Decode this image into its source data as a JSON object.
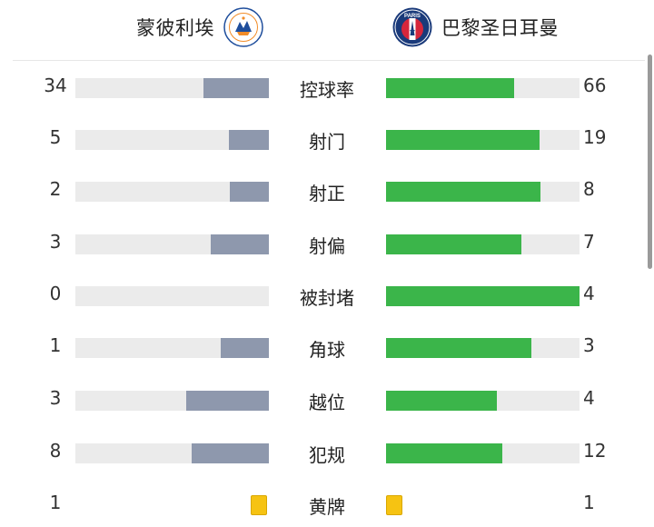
{
  "header": {
    "home_team": "蒙彼利埃",
    "away_team": "巴黎圣日耳曼",
    "home_logo_icon": "montpellier-crest",
    "away_logo_icon": "psg-crest",
    "away_logo_text": "PARIS",
    "home_logo_text": "MONTPELLIER HERAULT SPORT CLUB",
    "home_logo_year": "1974"
  },
  "colors": {
    "home_bar": "#8e98ad",
    "away_bar": "#3bb54a",
    "track": "#ebebeb",
    "yellow_card": "#f6c312"
  },
  "stats": [
    {
      "label": "控球率",
      "home": "34",
      "away": "66",
      "home_ratio": 0.34,
      "away_ratio": 0.66,
      "type": "bar"
    },
    {
      "label": "射门",
      "home": "5",
      "away": "19",
      "home_ratio": 0.2083,
      "away_ratio": 0.7917,
      "type": "bar"
    },
    {
      "label": "射正",
      "home": "2",
      "away": "8",
      "home_ratio": 0.2,
      "away_ratio": 0.8,
      "type": "bar"
    },
    {
      "label": "射偏",
      "home": "3",
      "away": "7",
      "home_ratio": 0.3,
      "away_ratio": 0.7,
      "type": "bar"
    },
    {
      "label": "被封堵",
      "home": "0",
      "away": "4",
      "home_ratio": 0.0,
      "away_ratio": 1.0,
      "type": "bar"
    },
    {
      "label": "角球",
      "home": "1",
      "away": "3",
      "home_ratio": 0.25,
      "away_ratio": 0.75,
      "type": "bar"
    },
    {
      "label": "越位",
      "home": "3",
      "away": "4",
      "home_ratio": 0.4286,
      "away_ratio": 0.5714,
      "type": "bar"
    },
    {
      "label": "犯规",
      "home": "8",
      "away": "12",
      "home_ratio": 0.4,
      "away_ratio": 0.6,
      "type": "bar"
    },
    {
      "label": "黄牌",
      "home": "1",
      "away": "1",
      "type": "card"
    }
  ]
}
